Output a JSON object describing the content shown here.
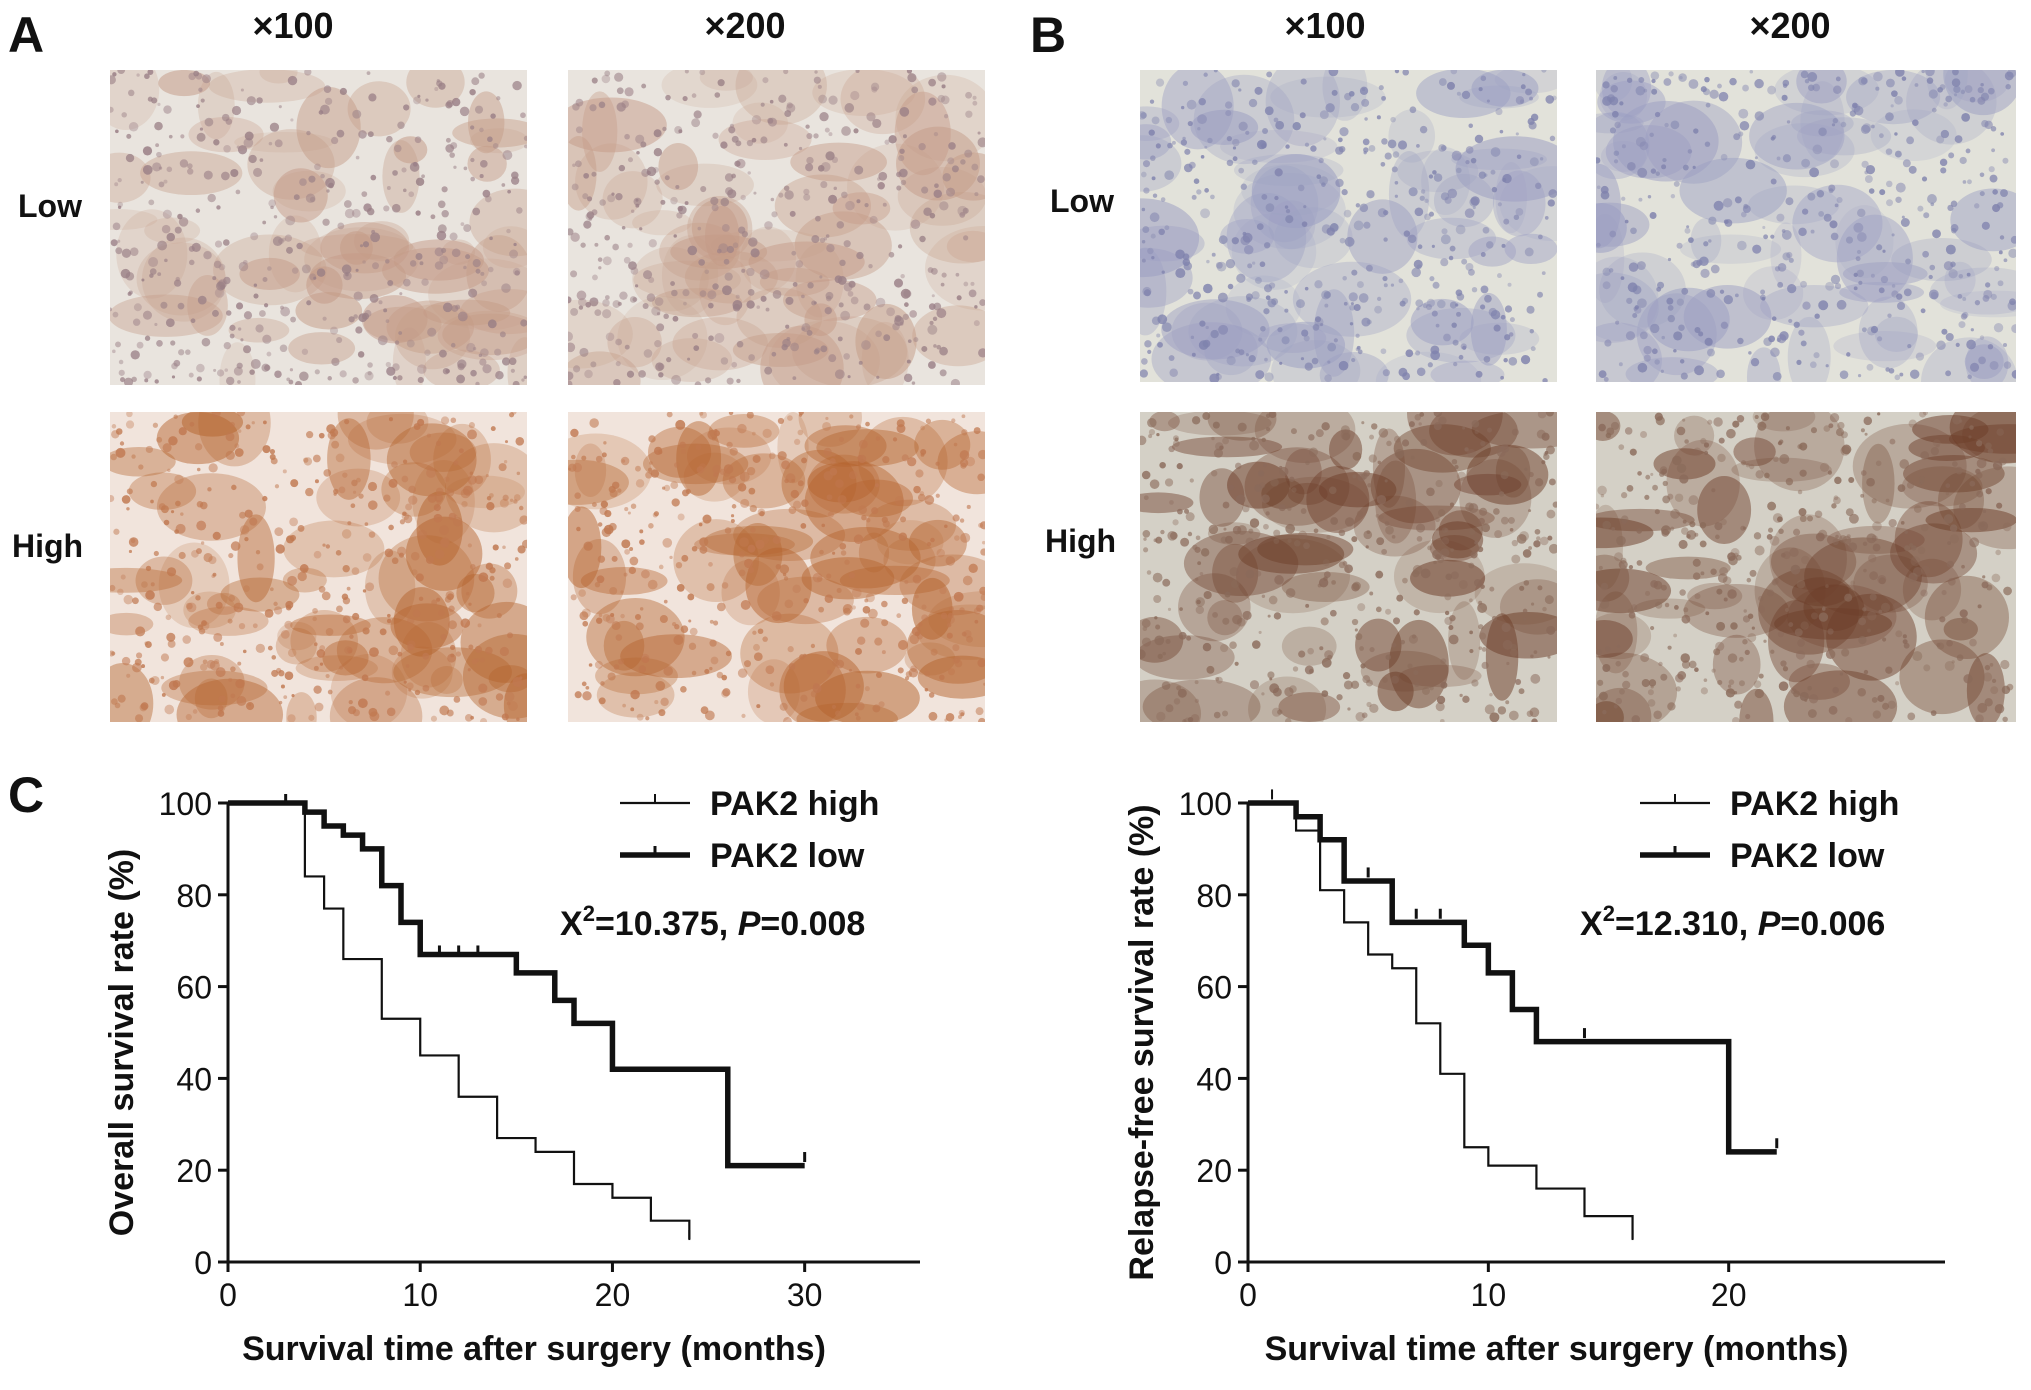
{
  "panels": {
    "A": {
      "letter": "A",
      "magnifications": [
        "×100",
        "×200"
      ],
      "rows": [
        "Low",
        "High"
      ],
      "palette": {
        "low": {
          "bg": "#e9e4de",
          "cell": "#9a7f86",
          "stain": "#c49a86"
        },
        "high": {
          "bg": "#f1e4dc",
          "cell": "#c07850",
          "stain": "#b5642e"
        }
      }
    },
    "B": {
      "letter": "B",
      "magnifications": [
        "×100",
        "×200"
      ],
      "rows": [
        "Low",
        "High"
      ],
      "palette": {
        "low": {
          "bg": "#e2e2da",
          "cell": "#7f82ad",
          "stain": "#9b9ec2"
        },
        "high": {
          "bg": "#d4d0c6",
          "cell": "#8a6a5a",
          "stain": "#6e3f2a"
        }
      }
    },
    "C": {
      "letter": "C"
    }
  },
  "chart_data": [
    {
      "type": "line",
      "ylabel": "Overall survival rate (%)",
      "xlabel": "Survival time after surgery (months)",
      "xlim": [
        0,
        36
      ],
      "ylim": [
        0,
        100
      ],
      "xticks": [
        0,
        10,
        20,
        30
      ],
      "yticks": [
        0,
        20,
        40,
        60,
        80,
        100
      ],
      "legend_position": "top-right",
      "stat": {
        "chi": "X",
        "sup": "2",
        "chi_value": "=10.375, ",
        "p": "P",
        "p_value": "=0.008"
      },
      "series": [
        {
          "name": "PAK2 high",
          "style": "thin",
          "steps": [
            [
              0,
              100
            ],
            [
              4,
              84
            ],
            [
              5,
              77
            ],
            [
              6,
              66
            ],
            [
              8,
              53
            ],
            [
              10,
              45
            ],
            [
              12,
              36
            ],
            [
              14,
              27
            ],
            [
              16,
              24
            ],
            [
              18,
              17
            ],
            [
              20,
              14
            ],
            [
              22,
              9
            ],
            [
              24,
              5
            ]
          ],
          "censors": [
            [
              3,
              100
            ],
            [
              24,
              5
            ]
          ]
        },
        {
          "name": "PAK2 low",
          "style": "thick",
          "steps": [
            [
              0,
              100
            ],
            [
              4,
              98
            ],
            [
              5,
              95
            ],
            [
              6,
              93
            ],
            [
              7,
              90
            ],
            [
              8,
              82
            ],
            [
              9,
              74
            ],
            [
              10,
              67
            ],
            [
              15,
              63
            ],
            [
              17,
              57
            ],
            [
              18,
              52
            ],
            [
              20,
              42
            ],
            [
              26,
              21
            ],
            [
              30,
              21
            ]
          ],
          "censors": [
            [
              3,
              100
            ],
            [
              11,
              67
            ],
            [
              12,
              67
            ],
            [
              13,
              67
            ],
            [
              15,
              64
            ],
            [
              18,
              55
            ],
            [
              30,
              22
            ]
          ]
        }
      ]
    },
    {
      "type": "line",
      "ylabel": "Relapse-free survival rate (%)",
      "xlabel": "Survival time after surgery (months)",
      "xlim": [
        0,
        29
      ],
      "ylim": [
        0,
        100
      ],
      "xticks": [
        0,
        10,
        20
      ],
      "yticks": [
        0,
        20,
        40,
        60,
        80,
        100
      ],
      "legend_position": "top-right",
      "stat": {
        "chi": "X",
        "sup": "2",
        "chi_value": "=12.310, ",
        "p": "P",
        "p_value": "=0.006"
      },
      "series": [
        {
          "name": "PAK2 high",
          "style": "thin",
          "steps": [
            [
              0,
              100
            ],
            [
              2,
              94
            ],
            [
              3,
              81
            ],
            [
              4,
              74
            ],
            [
              5,
              67
            ],
            [
              6,
              64
            ],
            [
              7,
              52
            ],
            [
              8,
              41
            ],
            [
              9,
              25
            ],
            [
              10,
              21
            ],
            [
              12,
              16
            ],
            [
              14,
              10
            ],
            [
              16,
              5
            ]
          ],
          "censors": [
            [
              1,
              101
            ],
            [
              16,
              5
            ]
          ]
        },
        {
          "name": "PAK2 low",
          "style": "thick",
          "steps": [
            [
              0,
              100
            ],
            [
              2,
              97
            ],
            [
              3,
              92
            ],
            [
              4,
              83
            ],
            [
              6,
              74
            ],
            [
              9,
              69
            ],
            [
              10,
              63
            ],
            [
              11,
              55
            ],
            [
              12,
              48
            ],
            [
              20,
              24
            ],
            [
              22,
              24
            ]
          ],
          "censors": [
            [
              5,
              84
            ],
            [
              7,
              75
            ],
            [
              8,
              75
            ],
            [
              14,
              49
            ],
            [
              22,
              25
            ]
          ]
        }
      ]
    }
  ]
}
